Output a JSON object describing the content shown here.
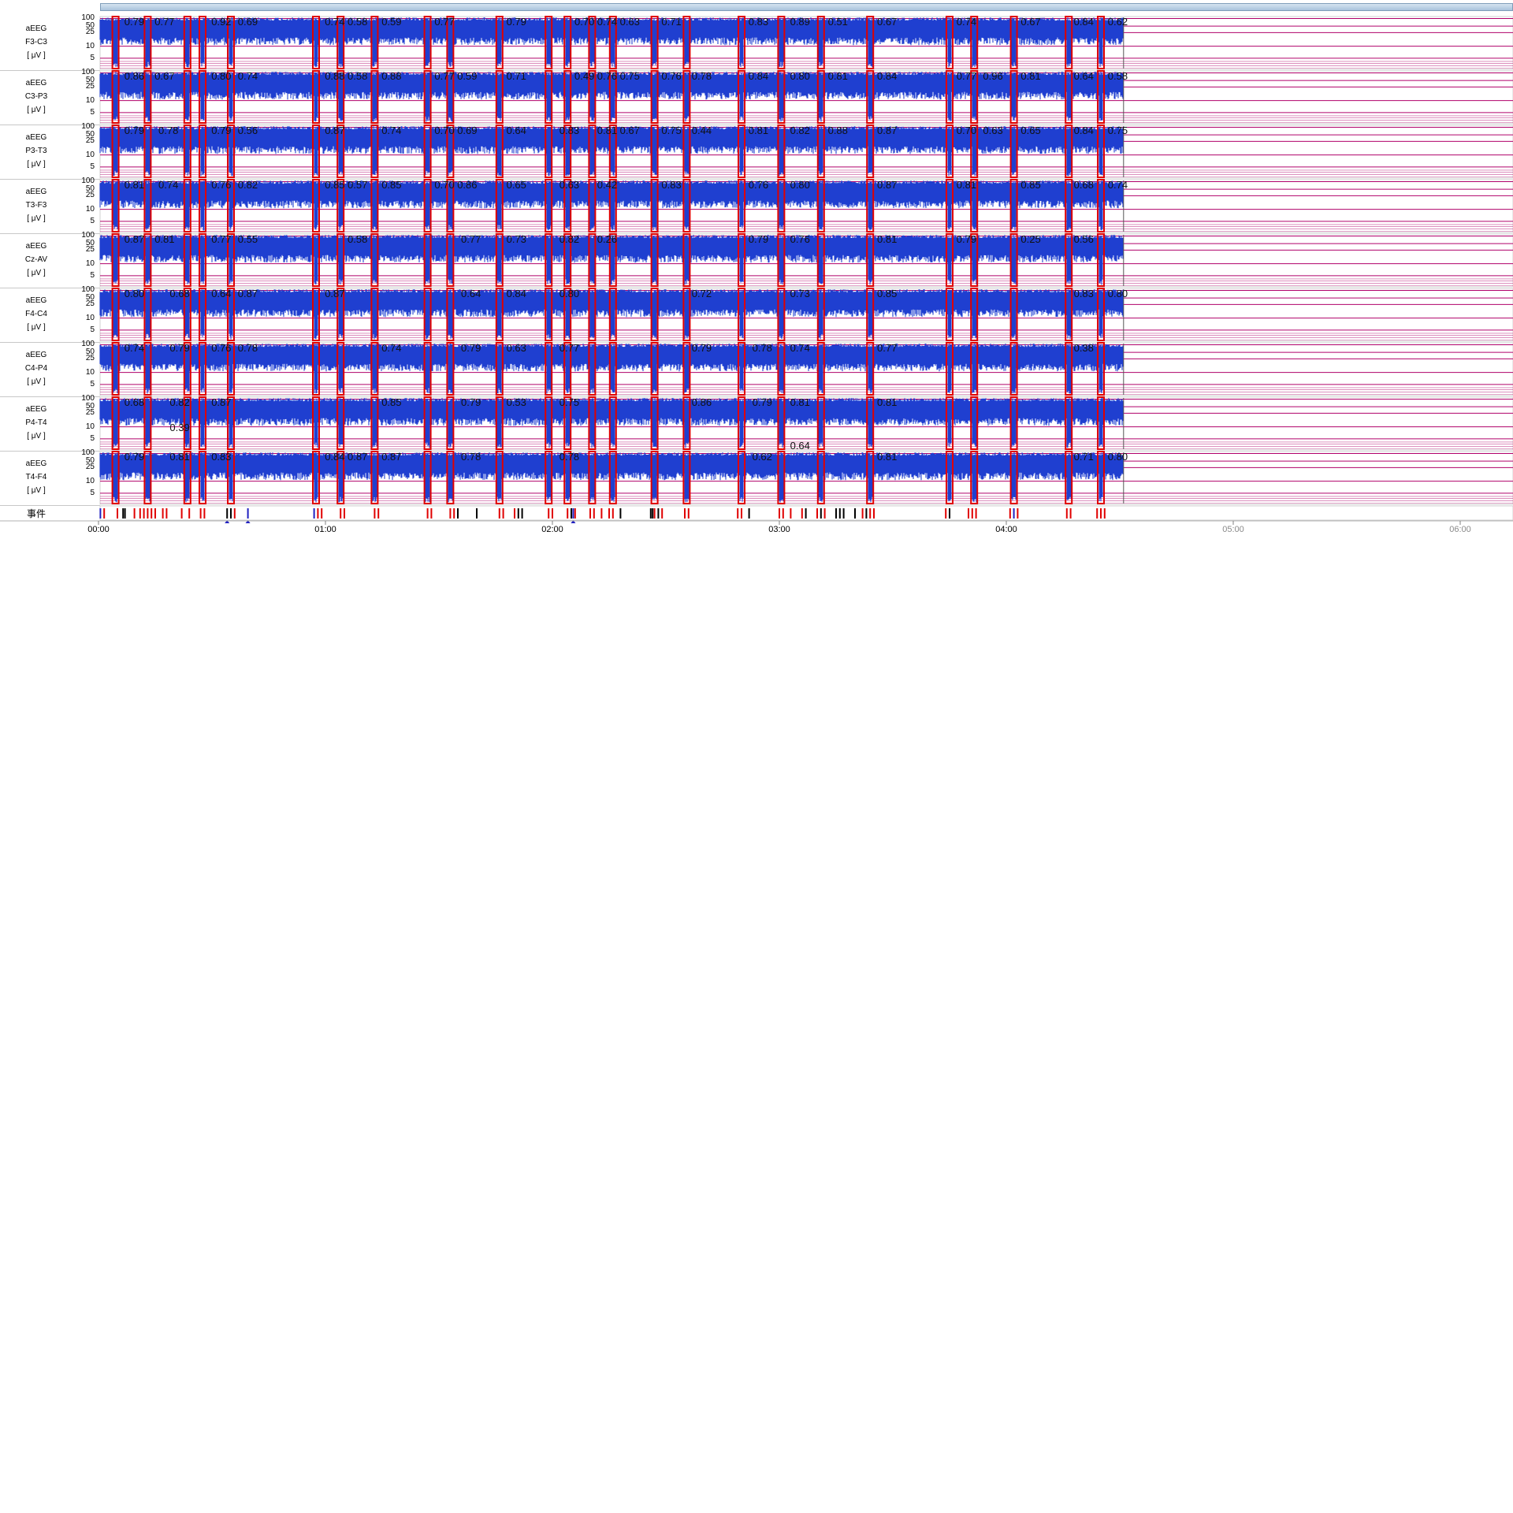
{
  "window": {
    "scrollbar": "timeline-scrollbar"
  },
  "channels": [
    {
      "type": "aEEG",
      "lead": "F3-C3",
      "unit": "[ μV ]"
    },
    {
      "type": "aEEG",
      "lead": "C3-P3",
      "unit": "[ μV ]"
    },
    {
      "type": "aEEG",
      "lead": "P3-T3",
      "unit": "[ μV ]"
    },
    {
      "type": "aEEG",
      "lead": "T3-F3",
      "unit": "[ μV ]"
    },
    {
      "type": "aEEG",
      "lead": "Cz-AV",
      "unit": "[ μV ]"
    },
    {
      "type": "aEEG",
      "lead": "F4-C4",
      "unit": "[ μV ]"
    },
    {
      "type": "aEEG",
      "lead": "C4-P4",
      "unit": "[ μV ]"
    },
    {
      "type": "aEEG",
      "lead": "P4-T4",
      "unit": "[ μV ]"
    },
    {
      "type": "aEEG",
      "lead": "T4-F4",
      "unit": "[ μV ]"
    }
  ],
  "scale_ticks": [
    "100",
    "50",
    "25",
    "10",
    "5"
  ],
  "events_label": "事件",
  "chart_data": {
    "type": "line",
    "xlabel": "",
    "ylabel": "",
    "x_ticks": [
      "00:00",
      "01:00",
      "02:00",
      "03:00",
      "04:00",
      "05:00",
      "06:00"
    ],
    "x_ticks_active": [
      true,
      true,
      true,
      true,
      true,
      false,
      false
    ],
    "xlim_minutes": [
      0,
      360
    ],
    "recording_end_minutes": 271,
    "y_ticks": [
      100,
      50,
      25,
      10,
      5
    ],
    "y_scale": "semi-logarithmic",
    "ylim": [
      0,
      100
    ],
    "grid": true,
    "colors": {
      "signal": "#1f3fd0",
      "marker": "#e00000",
      "grid": "#b0006a",
      "event_dark": "#000000",
      "event_blue": "#2020c0"
    },
    "marker_minutes": [
      4.5,
      13,
      23.5,
      27.5,
      35,
      57.5,
      64,
      73,
      87,
      93,
      106,
      119,
      124,
      130.5,
      136,
      147,
      155.5,
      170,
      180.5,
      191,
      204,
      225,
      231.5,
      242,
      256.5,
      265
    ],
    "value_labels": [
      {
        "channel": 0,
        "items": [
          {
            "m": 6,
            "v": "0.79"
          },
          {
            "m": 14,
            "v": "0.77"
          },
          {
            "m": 29,
            "v": "0.92"
          },
          {
            "m": 36,
            "v": "0.69"
          },
          {
            "m": 59,
            "v": "0.74"
          },
          {
            "m": 65,
            "v": "0.58"
          },
          {
            "m": 74,
            "v": "0.59"
          },
          {
            "m": 88,
            "v": "0.77"
          },
          {
            "m": 107,
            "v": "0.79"
          },
          {
            "m": 125,
            "v": "0.70"
          },
          {
            "m": 131,
            "v": "0.74"
          },
          {
            "m": 137,
            "v": "0.63"
          },
          {
            "m": 148,
            "v": "0.71"
          },
          {
            "m": 171,
            "v": "0.83"
          },
          {
            "m": 182,
            "v": "0.89"
          },
          {
            "m": 192,
            "v": "0.51"
          },
          {
            "m": 205,
            "v": "0.67"
          },
          {
            "m": 226,
            "v": "0.74"
          },
          {
            "m": 243,
            "v": "0.67"
          },
          {
            "m": 257,
            "v": "0.84"
          },
          {
            "m": 266,
            "v": "0.62"
          }
        ]
      },
      {
        "channel": 1,
        "items": [
          {
            "m": 6,
            "v": "0.86"
          },
          {
            "m": 14,
            "v": "0.67"
          },
          {
            "m": 29,
            "v": "0.80"
          },
          {
            "m": 36,
            "v": "0.74"
          },
          {
            "m": 59,
            "v": "0.88"
          },
          {
            "m": 65,
            "v": "0.58"
          },
          {
            "m": 74,
            "v": "0.88"
          },
          {
            "m": 88,
            "v": "0.77"
          },
          {
            "m": 94,
            "v": "0.59"
          },
          {
            "m": 107,
            "v": "0.71"
          },
          {
            "m": 125,
            "v": "0.49"
          },
          {
            "m": 131,
            "v": "0.76"
          },
          {
            "m": 137,
            "v": "0.75"
          },
          {
            "m": 148,
            "v": "0.76"
          },
          {
            "m": 156,
            "v": "0.78"
          },
          {
            "m": 171,
            "v": "0.84"
          },
          {
            "m": 182,
            "v": "0.80"
          },
          {
            "m": 192,
            "v": "0.81"
          },
          {
            "m": 205,
            "v": "0.84"
          },
          {
            "m": 226,
            "v": "0.77"
          },
          {
            "m": 233,
            "v": "0.96"
          },
          {
            "m": 243,
            "v": "0.81"
          },
          {
            "m": 257,
            "v": "0.64"
          },
          {
            "m": 266,
            "v": "0.58"
          }
        ]
      },
      {
        "channel": 2,
        "items": [
          {
            "m": 6,
            "v": "0.79"
          },
          {
            "m": 15,
            "v": "0.78"
          },
          {
            "m": 29,
            "v": "0.79"
          },
          {
            "m": 36,
            "v": "0.56"
          },
          {
            "m": 59,
            "v": "0.87"
          },
          {
            "m": 74,
            "v": "0.74"
          },
          {
            "m": 88,
            "v": "0.70"
          },
          {
            "m": 94,
            "v": "0.69"
          },
          {
            "m": 107,
            "v": "0.64"
          },
          {
            "m": 121,
            "v": "0.83"
          },
          {
            "m": 131,
            "v": "0.81"
          },
          {
            "m": 137,
            "v": "0.67"
          },
          {
            "m": 148,
            "v": "0.75"
          },
          {
            "m": 156,
            "v": "0.44"
          },
          {
            "m": 171,
            "v": "0.81"
          },
          {
            "m": 182,
            "v": "0.82"
          },
          {
            "m": 192,
            "v": "0.88"
          },
          {
            "m": 205,
            "v": "0.87"
          },
          {
            "m": 226,
            "v": "0.70"
          },
          {
            "m": 233,
            "v": "0.63"
          },
          {
            "m": 243,
            "v": "0.65"
          },
          {
            "m": 257,
            "v": "0.84"
          },
          {
            "m": 266,
            "v": "0.75"
          }
        ]
      },
      {
        "channel": 3,
        "items": [
          {
            "m": 6,
            "v": "0.81"
          },
          {
            "m": 15,
            "v": "0.74"
          },
          {
            "m": 29,
            "v": "0.76"
          },
          {
            "m": 36,
            "v": "0.82"
          },
          {
            "m": 59,
            "v": "0.85"
          },
          {
            "m": 65,
            "v": "0.57"
          },
          {
            "m": 74,
            "v": "0.85"
          },
          {
            "m": 88,
            "v": "0.70"
          },
          {
            "m": 94,
            "v": "0.86"
          },
          {
            "m": 107,
            "v": "0.65"
          },
          {
            "m": 121,
            "v": "0.63"
          },
          {
            "m": 131,
            "v": "0.42"
          },
          {
            "m": 148,
            "v": "0.83"
          },
          {
            "m": 171,
            "v": "0.76"
          },
          {
            "m": 182,
            "v": "0.80"
          },
          {
            "m": 205,
            "v": "0.87"
          },
          {
            "m": 226,
            "v": "0.81"
          },
          {
            "m": 243,
            "v": "0.85"
          },
          {
            "m": 257,
            "v": "0.68"
          },
          {
            "m": 266,
            "v": "0.74"
          }
        ]
      },
      {
        "channel": 4,
        "items": [
          {
            "m": 6,
            "v": "0.87"
          },
          {
            "m": 14,
            "v": "0.81"
          },
          {
            "m": 29,
            "v": "0.77"
          },
          {
            "m": 36,
            "v": "0.55"
          },
          {
            "m": 65,
            "v": "0.58"
          },
          {
            "m": 95,
            "v": "0.77"
          },
          {
            "m": 107,
            "v": "0.73"
          },
          {
            "m": 121,
            "v": "0.82"
          },
          {
            "m": 131,
            "v": "0.26"
          },
          {
            "m": 171,
            "v": "0.79"
          },
          {
            "m": 182,
            "v": "0.76"
          },
          {
            "m": 205,
            "v": "0.81"
          },
          {
            "m": 226,
            "v": "0.79"
          },
          {
            "m": 243,
            "v": "0.25"
          },
          {
            "m": 257,
            "v": "0.56"
          }
        ]
      },
      {
        "channel": 5,
        "items": [
          {
            "m": 6,
            "v": "0.80"
          },
          {
            "m": 18,
            "v": "0.68"
          },
          {
            "m": 29,
            "v": "0.64"
          },
          {
            "m": 36,
            "v": "0.87"
          },
          {
            "m": 59,
            "v": "0.87"
          },
          {
            "m": 95,
            "v": "0.64"
          },
          {
            "m": 107,
            "v": "0.84"
          },
          {
            "m": 121,
            "v": "0.80"
          },
          {
            "m": 156,
            "v": "0.72"
          },
          {
            "m": 182,
            "v": "0.73"
          },
          {
            "m": 205,
            "v": "0.85"
          },
          {
            "m": 257,
            "v": "0.83"
          },
          {
            "m": 266,
            "v": "0.80"
          }
        ]
      },
      {
        "channel": 6,
        "items": [
          {
            "m": 6,
            "v": "0.74"
          },
          {
            "m": 18,
            "v": "0.79"
          },
          {
            "m": 29,
            "v": "0.76"
          },
          {
            "m": 36,
            "v": "0.78"
          },
          {
            "m": 74,
            "v": "0.74"
          },
          {
            "m": 95,
            "v": "0.79"
          },
          {
            "m": 107,
            "v": "0.63"
          },
          {
            "m": 121,
            "v": "0.77"
          },
          {
            "m": 156,
            "v": "0.79"
          },
          {
            "m": 172,
            "v": "0.78"
          },
          {
            "m": 182,
            "v": "0.74"
          },
          {
            "m": 205,
            "v": "0.77"
          },
          {
            "m": 257,
            "v": "0.38"
          }
        ]
      },
      {
        "channel": 7,
        "items": [
          {
            "m": 6,
            "v": "0.68"
          },
          {
            "m": 18,
            "v": "0.82"
          },
          {
            "m": 29,
            "v": "0.87"
          },
          {
            "m": 74,
            "v": "0.85"
          },
          {
            "m": 95,
            "v": "0.79"
          },
          {
            "m": 107,
            "v": "0.53"
          },
          {
            "m": 121,
            "v": "0.75"
          },
          {
            "m": 156,
            "v": "0.86"
          },
          {
            "m": 172,
            "v": "0.79"
          },
          {
            "m": 182,
            "v": "0.81"
          },
          {
            "m": 205,
            "v": "0.81"
          },
          {
            "m": 18,
            "v": "0.39",
            "low": true
          }
        ]
      },
      {
        "channel": 8,
        "items": [
          {
            "m": 6,
            "v": "0.79"
          },
          {
            "m": 18,
            "v": "0.81"
          },
          {
            "m": 29,
            "v": "0.83"
          },
          {
            "m": 59,
            "v": "0.84"
          },
          {
            "m": 65,
            "v": "0.87"
          },
          {
            "m": 74,
            "v": "0.87"
          },
          {
            "m": 95,
            "v": "0.78"
          },
          {
            "m": 121,
            "v": "0.78"
          },
          {
            "m": 172,
            "v": "0.62"
          },
          {
            "m": 182,
            "v": "0.64",
            "high": true
          },
          {
            "m": 205,
            "v": "0.81"
          },
          {
            "m": 257,
            "v": "0.71"
          },
          {
            "m": 266,
            "v": "0.80"
          }
        ]
      }
    ],
    "events_minutes": [
      {
        "m": 0.5,
        "c": "blue"
      },
      {
        "m": 1.5,
        "c": "red"
      },
      {
        "m": 5,
        "c": "red"
      },
      {
        "m": 6.5,
        "c": "dark"
      },
      {
        "m": 7,
        "c": "dark"
      },
      {
        "m": 9.5,
        "c": "red"
      },
      {
        "m": 11,
        "c": "red"
      },
      {
        "m": 12,
        "c": "red"
      },
      {
        "m": 13,
        "c": "red"
      },
      {
        "m": 14,
        "c": "red"
      },
      {
        "m": 15,
        "c": "red"
      },
      {
        "m": 17,
        "c": "red"
      },
      {
        "m": 18,
        "c": "red"
      },
      {
        "m": 22,
        "c": "red"
      },
      {
        "m": 24,
        "c": "red"
      },
      {
        "m": 27,
        "c": "red"
      },
      {
        "m": 28,
        "c": "red"
      },
      {
        "m": 34,
        "c": "dark"
      },
      {
        "m": 35,
        "c": "dark"
      },
      {
        "m": 36,
        "c": "red"
      },
      {
        "m": 39.5,
        "c": "blue"
      },
      {
        "m": 57,
        "c": "blue"
      },
      {
        "m": 58,
        "c": "red"
      },
      {
        "m": 59,
        "c": "red"
      },
      {
        "m": 64,
        "c": "red"
      },
      {
        "m": 65,
        "c": "red"
      },
      {
        "m": 73,
        "c": "red"
      },
      {
        "m": 74,
        "c": "red"
      },
      {
        "m": 87,
        "c": "red"
      },
      {
        "m": 88,
        "c": "red"
      },
      {
        "m": 93,
        "c": "red"
      },
      {
        "m": 94,
        "c": "red"
      },
      {
        "m": 95,
        "c": "dark"
      },
      {
        "m": 100,
        "c": "dark"
      },
      {
        "m": 106,
        "c": "red"
      },
      {
        "m": 107,
        "c": "red"
      },
      {
        "m": 110,
        "c": "red"
      },
      {
        "m": 111,
        "c": "dark"
      },
      {
        "m": 112,
        "c": "dark"
      },
      {
        "m": 119,
        "c": "red"
      },
      {
        "m": 120,
        "c": "red"
      },
      {
        "m": 124,
        "c": "red"
      },
      {
        "m": 125,
        "c": "dark"
      },
      {
        "m": 125.5,
        "c": "blue"
      },
      {
        "m": 126,
        "c": "red"
      },
      {
        "m": 130,
        "c": "red"
      },
      {
        "m": 131,
        "c": "red"
      },
      {
        "m": 133,
        "c": "red"
      },
      {
        "m": 135,
        "c": "red"
      },
      {
        "m": 136,
        "c": "red"
      },
      {
        "m": 138,
        "c": "dark"
      },
      {
        "m": 146,
        "c": "dark"
      },
      {
        "m": 146.5,
        "c": "dark"
      },
      {
        "m": 147,
        "c": "red"
      },
      {
        "m": 148,
        "c": "dark"
      },
      {
        "m": 149,
        "c": "red"
      },
      {
        "m": 155,
        "c": "red"
      },
      {
        "m": 156,
        "c": "red"
      },
      {
        "m": 169,
        "c": "red"
      },
      {
        "m": 170,
        "c": "red"
      },
      {
        "m": 172,
        "c": "dark"
      },
      {
        "m": 180,
        "c": "red"
      },
      {
        "m": 181,
        "c": "red"
      },
      {
        "m": 183,
        "c": "red"
      },
      {
        "m": 186,
        "c": "red"
      },
      {
        "m": 187,
        "c": "dark"
      },
      {
        "m": 190,
        "c": "red"
      },
      {
        "m": 191,
        "c": "dark"
      },
      {
        "m": 192,
        "c": "red"
      },
      {
        "m": 195,
        "c": "dark"
      },
      {
        "m": 196,
        "c": "dark"
      },
      {
        "m": 197,
        "c": "dark"
      },
      {
        "m": 200,
        "c": "dark"
      },
      {
        "m": 202,
        "c": "red"
      },
      {
        "m": 203,
        "c": "dark"
      },
      {
        "m": 204,
        "c": "red"
      },
      {
        "m": 205,
        "c": "red"
      },
      {
        "m": 224,
        "c": "red"
      },
      {
        "m": 225,
        "c": "dark"
      },
      {
        "m": 230,
        "c": "red"
      },
      {
        "m": 231,
        "c": "red"
      },
      {
        "m": 232,
        "c": "red"
      },
      {
        "m": 241,
        "c": "red"
      },
      {
        "m": 242,
        "c": "blue"
      },
      {
        "m": 243,
        "c": "red"
      },
      {
        "m": 256,
        "c": "red"
      },
      {
        "m": 257,
        "c": "red"
      },
      {
        "m": 264,
        "c": "red"
      },
      {
        "m": 265,
        "c": "red"
      },
      {
        "m": 266,
        "c": "red"
      }
    ],
    "event_flags_minutes": [
      34,
      39.5,
      125.5
    ]
  }
}
